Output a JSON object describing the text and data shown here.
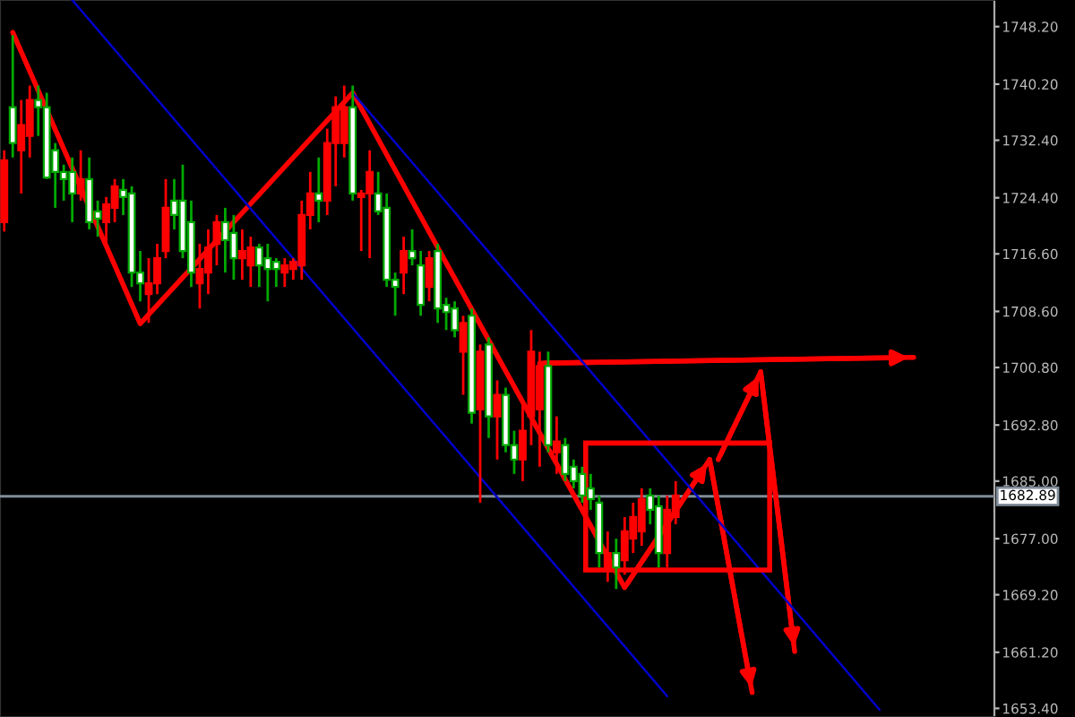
{
  "chart_data": {
    "type": "candlestick",
    "categories": [
      null,
      null,
      null,
      null,
      null,
      null,
      null,
      null,
      null,
      null,
      null,
      null,
      null,
      null,
      null,
      null,
      null,
      null,
      null,
      null,
      null,
      null,
      null,
      null,
      null,
      null,
      null,
      null,
      null,
      null,
      null,
      null,
      null,
      null,
      null,
      null,
      null,
      null,
      null,
      null,
      null,
      null,
      null,
      null,
      null,
      null,
      null,
      null,
      null,
      null,
      null,
      null,
      null,
      null,
      null,
      null,
      null,
      null,
      null,
      null,
      null,
      null,
      null,
      null,
      null,
      null,
      null,
      null,
      null,
      null,
      null,
      null,
      null,
      null,
      null,
      null,
      null,
      null,
      null,
      null,
      null,
      null,
      null,
      null,
      null,
      null,
      null,
      null,
      null,
      null,
      null,
      null,
      null,
      null,
      null,
      null,
      null,
      null,
      null,
      null,
      null,
      null,
      null,
      null,
      null,
      null,
      null,
      null,
      null,
      null,
      null,
      null,
      null,
      null,
      null,
      null,
      null
    ],
    "ohlc": [
      [
        1721,
        1731,
        1719.7,
        1729.6
      ],
      [
        1737,
        1747,
        1730,
        1732
      ],
      [
        1731,
        1738,
        1725,
        1734.5
      ],
      [
        1733,
        1740,
        1730,
        1738
      ],
      [
        1738,
        1740,
        1733,
        1737
      ],
      [
        1737,
        1739,
        1727,
        1727.2
      ],
      [
        1731,
        1732,
        1723,
        1728
      ],
      [
        1728,
        1729,
        1724,
        1727
      ],
      [
        1728,
        1730,
        1721,
        1725
      ],
      [
        1725,
        1731,
        1724,
        1727
      ],
      [
        1727,
        1730,
        1720,
        1721
      ],
      [
        1722.5,
        1724,
        1719,
        1721.5
      ],
      [
        1721,
        1724.5,
        1718,
        1723.5
      ],
      [
        1723,
        1727,
        1721,
        1726
      ],
      [
        1725.5,
        1727,
        1722,
        1724.5
      ],
      [
        1725,
        1726,
        1712,
        1714
      ],
      [
        1714,
        1717,
        1710,
        1712.5
      ],
      [
        1711,
        1716,
        1707,
        1712.5
      ],
      [
        1712.5,
        1718,
        1711,
        1716
      ],
      [
        1717,
        1727,
        1716,
        1723
      ],
      [
        1724,
        1727,
        1720,
        1722
      ],
      [
        1724,
        1729,
        1716,
        1717
      ],
      [
        1721,
        1724,
        1712,
        1714
      ],
      [
        1712.5,
        1718,
        1709,
        1714.5
      ],
      [
        1714,
        1720,
        1711,
        1717.5
      ],
      [
        1718,
        1722,
        1715,
        1721
      ],
      [
        1721,
        1723,
        1714,
        1718.5
      ],
      [
        1719.5,
        1722,
        1713,
        1716
      ],
      [
        1716,
        1720,
        1713,
        1717
      ],
      [
        1715,
        1719,
        1712,
        1717.5
      ],
      [
        1717.5,
        1718,
        1712,
        1715
      ],
      [
        1716,
        1718,
        1710,
        1714.5
      ],
      [
        1715.5,
        1716,
        1712,
        1714.5
      ],
      [
        1714,
        1716,
        1712,
        1715
      ],
      [
        1714.5,
        1716,
        1713,
        1715.5
      ],
      [
        1715,
        1724,
        1713,
        1722
      ],
      [
        1722,
        1728,
        1720,
        1725
      ],
      [
        1725,
        1730,
        1721,
        1724
      ],
      [
        1724,
        1734,
        1722,
        1732
      ],
      [
        1732,
        1738.5,
        1726,
        1737
      ],
      [
        1732,
        1740,
        1730,
        1737
      ],
      [
        1737,
        1740,
        1724,
        1725
      ],
      [
        1724.5,
        1725.5,
        1717,
        1725
      ],
      [
        1725,
        1731,
        1716,
        1728
      ],
      [
        1725,
        1728,
        1722,
        1722.5
      ],
      [
        1723,
        1725,
        1712,
        1713
      ],
      [
        1713,
        1714,
        1708,
        1712
      ],
      [
        1714,
        1719,
        1711,
        1717
      ],
      [
        1717,
        1720,
        1715,
        1716
      ],
      [
        1715,
        1717,
        1708,
        1709.5
      ],
      [
        1712,
        1717,
        1710,
        1716
      ],
      [
        1717,
        1718,
        1707,
        1709
      ],
      [
        1709.5,
        1710.5,
        1706,
        1708.5
      ],
      [
        1709,
        1710,
        1705,
        1706
      ],
      [
        1703,
        1708,
        1697,
        1707
      ],
      [
        1708,
        1709,
        1693,
        1694.5
      ],
      [
        1695,
        1704,
        1682,
        1703
      ],
      [
        1704,
        1705,
        1691,
        1694
      ],
      [
        1694,
        1699,
        1688,
        1697
      ],
      [
        1697,
        1698,
        1689,
        1690
      ],
      [
        1690,
        1692,
        1686,
        1688
      ],
      [
        1688,
        1696,
        1685,
        1692
      ],
      [
        1694,
        1706,
        1690,
        1703
      ],
      [
        1695,
        1703,
        1687,
        1701
      ],
      [
        1701,
        1703,
        1689,
        1690
      ],
      [
        1689,
        1694,
        1686,
        1690.5
      ],
      [
        1690,
        1691,
        1685,
        1686
      ],
      [
        1687,
        1688,
        1684,
        1685
      ],
      [
        1686,
        1687,
        1682,
        1683
      ],
      [
        1684,
        1686,
        1681,
        1682.5
      ],
      [
        1682,
        1683,
        1673,
        1675
      ],
      [
        1673,
        1678,
        1671,
        1675
      ],
      [
        1675,
        1677,
        1670,
        1673
      ],
      [
        1674,
        1680,
        1672,
        1678
      ],
      [
        1677,
        1682,
        1675,
        1680
      ],
      [
        1678,
        1684,
        1676,
        1682.5
      ],
      [
        1683,
        1684,
        1679,
        1681
      ],
      [
        1681.5,
        1683,
        1673,
        1675
      ],
      [
        1675,
        1683,
        1673,
        1681
      ],
      [
        1680,
        1685,
        1679,
        1683
      ],
      null,
      null,
      null,
      null,
      null,
      null,
      null,
      null,
      null,
      null,
      null,
      null,
      null,
      null,
      null,
      null,
      null,
      null,
      null,
      null,
      null,
      null,
      null,
      null,
      null,
      null,
      null,
      null,
      null,
      null,
      null,
      null,
      null,
      null,
      null,
      null,
      null
    ],
    "colors": [
      "#ff0000",
      "#ffffff",
      "#ff0000",
      "#ff0000",
      "#ffffff",
      "#ffffff",
      "#ffffff",
      "#ffffff",
      "#ffffff",
      "#ff0000",
      "#ffffff",
      "#ffffff",
      "#ff0000",
      "#ff0000",
      "#ffffff",
      "#ffffff",
      "#ffffff",
      "#ff0000",
      "#ff0000",
      "#ff0000",
      "#ffffff",
      "#ffffff",
      "#ffffff",
      "#ff0000",
      "#ff0000",
      "#ff0000",
      "#ffffff",
      "#ffffff",
      "#ff0000",
      "#ff0000",
      "#ffffff",
      "#ffffff",
      "#ffffff",
      "#ff0000",
      "#ff0000",
      "#ff0000",
      "#ff0000",
      "#ffffff",
      "#ff0000",
      "#ff0000",
      "#ff0000",
      "#ffffff",
      "#ff0000",
      "#ff0000",
      "#ffffff",
      "#ffffff",
      "#ffffff",
      "#ff0000",
      "#ffffff",
      "#ffffff",
      "#ff0000",
      "#ffffff",
      "#ffffff",
      "#ffffff",
      "#ff0000",
      "#ffffff",
      "#ff0000",
      "#ffffff",
      "#ff0000",
      "#ffffff",
      "#ffffff",
      "#ff0000",
      "#ff0000",
      "#ff0000",
      "#ffffff",
      "#ff0000",
      "#ffffff",
      "#ffffff",
      "#ffffff",
      "#ffffff",
      "#ffffff",
      "#ff0000",
      "#ffffff",
      "#ff0000",
      "#ff0000",
      "#ff0000",
      "#ffffff",
      "#ffffff",
      "#ff0000",
      "#ff0000",
      null,
      null,
      null,
      null,
      null,
      null,
      null,
      null,
      null,
      null,
      null,
      null,
      null,
      null,
      null,
      null,
      null,
      null,
      null,
      null,
      null,
      null,
      null,
      null,
      null,
      null,
      null,
      null,
      null,
      null,
      null,
      null,
      null,
      null,
      null,
      null,
      null
    ],
    "series": [
      {
        "type": "line",
        "color": "#ff0000",
        "values": [
          null,
          1747.4,
          null,
          null,
          null,
          null,
          null,
          null,
          null,
          null,
          null,
          null,
          null,
          null,
          null,
          null,
          1706.9,
          null,
          null,
          null,
          null,
          null,
          null,
          null,
          null,
          null,
          null,
          null,
          null,
          null,
          null,
          null,
          null,
          null,
          null,
          null,
          null,
          null,
          null,
          null,
          null,
          1739.0,
          null,
          null,
          null,
          null,
          null,
          null,
          null,
          null,
          null,
          null,
          null,
          null,
          null,
          null,
          null,
          null,
          null,
          null,
          null,
          null,
          null,
          null,
          null,
          null,
          null,
          null,
          null,
          null,
          null,
          null,
          null,
          1670.2,
          null,
          null,
          null,
          null,
          null,
          null,
          null,
          null,
          null,
          1688.0,
          null,
          null,
          null,
          null,
          null,
          null,
          null,
          null,
          null,
          null,
          null,
          null,
          null,
          null,
          null,
          null,
          null,
          null,
          null,
          null,
          null,
          null,
          null,
          null,
          null,
          null,
          null,
          null,
          null,
          null,
          null,
          null,
          null
        ]
      },
      {
        "type": "line",
        "color": "#ff0000",
        "values": [
          null,
          null,
          null,
          null,
          null,
          null,
          null,
          null,
          null,
          null,
          null,
          null,
          null,
          null,
          null,
          null,
          null,
          null,
          null,
          null,
          null,
          null,
          null,
          null,
          null,
          null,
          null,
          null,
          null,
          null,
          null,
          null,
          null,
          null,
          null,
          null,
          null,
          null,
          null,
          null,
          null,
          null,
          null,
          null,
          null,
          null,
          null,
          null,
          null,
          null,
          null,
          null,
          null,
          null,
          null,
          null,
          null,
          null,
          null,
          null,
          null,
          null,
          null,
          null,
          null,
          null,
          null,
          null,
          null,
          null,
          null,
          null,
          null,
          null,
          null,
          null,
          null,
          null,
          null,
          null,
          null,
          null,
          null,
          null,
          1688.0,
          null,
          null,
          null,
          null,
          1700.2,
          null,
          null,
          null,
          null,
          null,
          null,
          null,
          null,
          null,
          null,
          null,
          null,
          null,
          null,
          null,
          null,
          null,
          null,
          null,
          null,
          null,
          null,
          null,
          null,
          null,
          null,
          null
        ]
      },
      {
        "type": "line",
        "color": "#ff0000",
        "values": [
          null,
          null,
          null,
          null,
          null,
          null,
          null,
          null,
          null,
          null,
          null,
          null,
          null,
          null,
          null,
          null,
          null,
          null,
          null,
          null,
          null,
          null,
          null,
          null,
          null,
          null,
          null,
          null,
          null,
          null,
          null,
          null,
          null,
          null,
          null,
          null,
          null,
          null,
          null,
          null,
          null,
          null,
          null,
          null,
          null,
          null,
          null,
          null,
          null,
          null,
          null,
          null,
          null,
          null,
          null,
          null,
          null,
          null,
          null,
          null,
          null,
          null,
          null,
          null,
          null,
          null,
          null,
          null,
          null,
          null,
          null,
          null,
          null,
          null,
          null,
          null,
          null,
          null,
          null,
          null,
          null,
          null,
          null,
          null,
          null,
          null,
          null,
          null,
          null,
          1700.2,
          null,
          null,
          null,
          1661.3,
          null,
          null,
          null,
          null,
          null,
          null,
          null,
          null,
          null,
          null,
          null,
          null,
          null,
          null,
          null,
          null,
          null,
          null,
          null,
          null,
          null,
          null,
          null
        ]
      },
      {
        "type": "line",
        "color": "#ff0000",
        "values": [
          null,
          null,
          null,
          null,
          null,
          null,
          null,
          null,
          null,
          null,
          null,
          null,
          null,
          null,
          null,
          null,
          null,
          null,
          null,
          null,
          null,
          null,
          null,
          null,
          null,
          null,
          null,
          null,
          null,
          null,
          null,
          null,
          null,
          null,
          null,
          null,
          null,
          null,
          null,
          null,
          null,
          null,
          null,
          null,
          null,
          null,
          null,
          null,
          null,
          null,
          null,
          null,
          null,
          null,
          null,
          null,
          null,
          null,
          null,
          null,
          null,
          null,
          null,
          null,
          null,
          null,
          null,
          null,
          null,
          null,
          null,
          null,
          null,
          null,
          null,
          null,
          null,
          null,
          null,
          null,
          null,
          null,
          null,
          1688.0,
          null,
          null,
          null,
          null,
          1655.6,
          null,
          null,
          null,
          null,
          null,
          null,
          null,
          null,
          null,
          null,
          null,
          null,
          null,
          null,
          null,
          null,
          null,
          null,
          null,
          null,
          null,
          null,
          null,
          null,
          null,
          null,
          null,
          null
        ]
      },
      {
        "type": "line",
        "color": "#ff0000",
        "values": [
          null,
          null,
          null,
          null,
          null,
          null,
          null,
          null,
          null,
          null,
          null,
          null,
          null,
          null,
          null,
          null,
          null,
          null,
          null,
          null,
          null,
          null,
          null,
          null,
          null,
          null,
          null,
          null,
          null,
          null,
          null,
          null,
          null,
          null,
          null,
          null,
          null,
          null,
          null,
          null,
          null,
          null,
          null,
          null,
          null,
          null,
          null,
          null,
          null,
          null,
          null,
          null,
          null,
          null,
          null,
          null,
          null,
          null,
          null,
          null,
          null,
          null,
          null,
          1701.4,
          null,
          null,
          null,
          null,
          null,
          null,
          null,
          null,
          null,
          null,
          null,
          null,
          null,
          null,
          null,
          null,
          null,
          null,
          null,
          null,
          null,
          null,
          null,
          null,
          null,
          null,
          null,
          null,
          null,
          null,
          null,
          null,
          null,
          null,
          null,
          null,
          null,
          null,
          null,
          null,
          null,
          null,
          null,
          1702.2,
          null,
          null,
          null,
          null,
          null,
          null,
          null,
          null,
          null
        ]
      },
      {
        "type": "line",
        "color": "#0000cc",
        "values": [
          null,
          null,
          null,
          null,
          null,
          null,
          null,
          null,
          1751.9,
          null,
          null,
          null,
          null,
          null,
          null,
          null,
          null,
          null,
          null,
          null,
          null,
          null,
          null,
          null,
          null,
          null,
          null,
          null,
          null,
          null,
          null,
          null,
          null,
          null,
          null,
          null,
          null,
          null,
          null,
          null,
          null,
          null,
          null,
          null,
          null,
          null,
          null,
          null,
          null,
          null,
          null,
          null,
          null,
          null,
          null,
          null,
          null,
          null,
          null,
          null,
          null,
          null,
          null,
          null,
          null,
          null,
          null,
          null,
          null,
          null,
          null,
          null,
          null,
          null,
          null,
          null,
          null,
          null,
          1655.1,
          null,
          null,
          null,
          null,
          null,
          null,
          null,
          null,
          null,
          null,
          null,
          null,
          null,
          null,
          null,
          null,
          null,
          null,
          null,
          null,
          null,
          null,
          null,
          null,
          null,
          null,
          null,
          null,
          null,
          null,
          null,
          null,
          null,
          null,
          null,
          null,
          null,
          null
        ]
      },
      {
        "type": "line",
        "color": "#0000cc",
        "values": [
          null,
          null,
          null,
          null,
          null,
          null,
          null,
          null,
          null,
          null,
          null,
          null,
          null,
          null,
          null,
          null,
          null,
          null,
          null,
          null,
          null,
          null,
          null,
          null,
          null,
          null,
          null,
          null,
          null,
          null,
          null,
          null,
          null,
          null,
          null,
          null,
          null,
          null,
          null,
          null,
          null,
          1739.0,
          null,
          null,
          null,
          null,
          null,
          null,
          null,
          null,
          null,
          null,
          null,
          null,
          null,
          null,
          null,
          null,
          null,
          null,
          null,
          null,
          null,
          null,
          null,
          null,
          null,
          null,
          null,
          null,
          null,
          null,
          null,
          null,
          null,
          null,
          null,
          null,
          null,
          null,
          null,
          null,
          null,
          null,
          null,
          null,
          null,
          null,
          null,
          null,
          null,
          null,
          null,
          null,
          null,
          null,
          null,
          null,
          null,
          null,
          null,
          null,
          null,
          1653.2,
          null,
          null,
          null,
          null,
          null,
          null,
          null,
          null,
          null,
          null,
          null,
          null,
          null
        ]
      }
    ],
    "ref_lines": [
      {
        "axis": "y",
        "value": 1682.89,
        "label": "1682.89",
        "color": "#7f8c99"
      }
    ],
    "ylim": [
      1652.2,
      1751.9
    ],
    "yticks": [
      {
        "value": 1748.2,
        "label": "1748.20"
      },
      {
        "value": 1740.2,
        "label": "1740.20"
      },
      {
        "value": 1732.4,
        "label": "1732.40"
      },
      {
        "value": 1724.4,
        "label": "1724.40"
      },
      {
        "value": 1716.6,
        "label": "1716.60"
      },
      {
        "value": 1708.6,
        "label": "1708.60"
      },
      {
        "value": 1700.8,
        "label": "1700.80"
      },
      {
        "value": 1692.8,
        "label": "1692.80"
      },
      {
        "value": 1685,
        "label": "1685.00"
      },
      {
        "value": 1677,
        "label": "1677.00"
      },
      {
        "value": 1669.2,
        "label": "1669.20"
      },
      {
        "value": 1661.2,
        "label": "1661.20"
      },
      {
        "value": 1653.4,
        "label": "1653.40"
      }
    ],
    "tick_labels": "y",
    "grid": false
  }
}
